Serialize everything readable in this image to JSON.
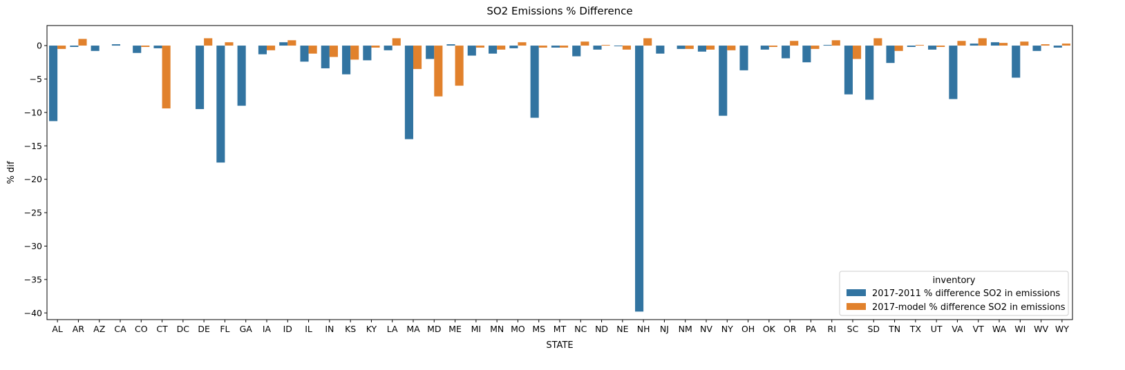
{
  "chart_data": {
    "type": "bar",
    "title": "SO2 Emissions % Difference",
    "xlabel": "STATE",
    "ylabel": "% dif",
    "ylim": [
      -41,
      3
    ],
    "yticks": [
      0,
      -5,
      -10,
      -15,
      -20,
      -25,
      -30,
      -35,
      -40
    ],
    "ytick_labels": [
      "0",
      "−5",
      "−10",
      "−15",
      "−20",
      "−25",
      "−30",
      "−35",
      "−40"
    ],
    "grid": false,
    "legend": {
      "title": "inventory",
      "position": "lower right"
    },
    "categories": [
      "AL",
      "AR",
      "AZ",
      "CA",
      "CO",
      "CT",
      "DC",
      "DE",
      "FL",
      "GA",
      "IA",
      "ID",
      "IL",
      "IN",
      "KS",
      "KY",
      "LA",
      "MA",
      "MD",
      "ME",
      "MI",
      "MN",
      "MO",
      "MS",
      "MT",
      "NC",
      "ND",
      "NE",
      "NH",
      "NJ",
      "NM",
      "NV",
      "NY",
      "OH",
      "OK",
      "OR",
      "PA",
      "RI",
      "SC",
      "SD",
      "TN",
      "TX",
      "UT",
      "VA",
      "VT",
      "WA",
      "WI",
      "WV",
      "WY"
    ],
    "series": [
      {
        "name": "2017-2011 % difference SO2 in emissions",
        "color": "#3274a1",
        "values": [
          -11.3,
          -0.2,
          -0.8,
          0.2,
          -1.1,
          -0.4,
          0,
          -9.5,
          -17.5,
          -9.0,
          -1.3,
          0.5,
          -2.4,
          -3.4,
          -4.3,
          -2.2,
          -0.7,
          -14.0,
          -2.0,
          0.2,
          -1.5,
          -1.2,
          -0.4,
          -10.8,
          -0.3,
          -1.6,
          -0.6,
          -0.1,
          -39.8,
          -1.2,
          -0.5,
          -0.9,
          -10.5,
          -3.7,
          -0.6,
          -1.9,
          -2.5,
          0.1,
          -7.3,
          -8.1,
          -2.6,
          -0.2,
          -0.6,
          -8.0,
          0.3,
          0.5,
          -4.8,
          -0.8,
          -0.3
        ]
      },
      {
        "name": "2017-model % difference SO2 in emissions",
        "color": "#e1812c",
        "values": [
          -0.5,
          1.0,
          0,
          0,
          -0.2,
          -9.4,
          0,
          1.1,
          0.5,
          0,
          -0.7,
          0.8,
          -1.2,
          -1.7,
          -2.1,
          -0.3,
          1.1,
          -3.5,
          -7.6,
          -6.0,
          -0.3,
          -0.6,
          0.5,
          -0.3,
          -0.3,
          0.6,
          0.1,
          -0.6,
          1.1,
          0,
          -0.5,
          -0.6,
          -0.7,
          0,
          -0.2,
          0.7,
          -0.5,
          0.8,
          -2.0,
          1.1,
          -0.8,
          0.1,
          -0.2,
          0.7,
          1.1,
          0.4,
          0.6,
          0.2,
          0.3
        ]
      }
    ]
  }
}
